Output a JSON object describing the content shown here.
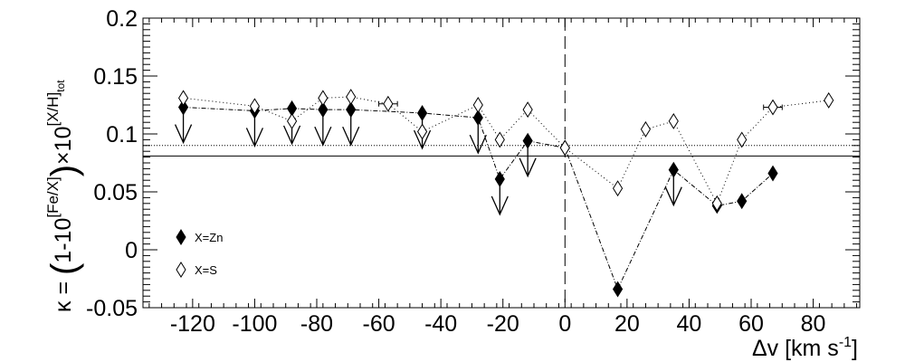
{
  "chart_data": {
    "type": "scatter",
    "xlabel": "Δv [km s",
    "xlabel_sup": "-1",
    "xlabel_end": "]",
    "ylabel": {
      "kappa": "κ = ",
      "lparen": "(",
      "one": "1-10",
      "exp_fe": "[Fe/X]",
      "rparen": ")",
      "times": "×10",
      "exp_xh": "[X/H]",
      "exp_tot": "tot"
    },
    "xlim": [
      -136,
      95
    ],
    "ylim": [
      -0.05,
      0.2
    ],
    "x_ticks": [
      -120,
      -100,
      -80,
      -60,
      -40,
      -20,
      0,
      20,
      40,
      60,
      80
    ],
    "x_tick_labels": [
      "-120",
      "-100",
      "-80",
      "-60",
      "-40",
      "-20",
      "0",
      "20",
      "40",
      "60",
      "80"
    ],
    "y_ticks": [
      -0.05,
      0,
      0.05,
      0.1,
      0.15,
      0.2
    ],
    "y_tick_labels": [
      "-0.05",
      "0",
      "0.05",
      "0.1",
      "0.15",
      "0.2"
    ],
    "reference_lines": {
      "solid_y": 0.081,
      "dotted_y": 0.09,
      "dashed_x": 0
    },
    "series": [
      {
        "name": "X=Zn",
        "marker": "filled-diamond",
        "line": "dash-dot",
        "points": [
          {
            "x": -123,
            "y": 0.123,
            "upper_limit": true
          },
          {
            "x": -100,
            "y": 0.12,
            "upper_limit": true
          },
          {
            "x": -88,
            "y": 0.122,
            "upper_limit": true
          },
          {
            "x": -78,
            "y": 0.121,
            "upper_limit": true
          },
          {
            "x": -69,
            "y": 0.121,
            "upper_limit": true
          },
          {
            "x": -46,
            "y": 0.118,
            "upper_limit": true
          },
          {
            "x": -28,
            "y": 0.114,
            "upper_limit": true
          },
          {
            "x": -21,
            "y": 0.061,
            "upper_limit": true
          },
          {
            "x": -12,
            "y": 0.094,
            "upper_limit": true
          },
          {
            "x": 0,
            "y": 0.088,
            "upper_limit": false
          },
          {
            "x": 17,
            "y": -0.034,
            "upper_limit": false
          },
          {
            "x": 35,
            "y": 0.069,
            "upper_limit": true
          },
          {
            "x": 49,
            "y": 0.038,
            "upper_limit": false
          },
          {
            "x": 57,
            "y": 0.042,
            "upper_limit": false
          },
          {
            "x": 67,
            "y": 0.066,
            "upper_limit": false
          }
        ]
      },
      {
        "name": "X=S",
        "marker": "open-diamond",
        "line": "dotted",
        "points": [
          {
            "x": -123,
            "y": 0.131
          },
          {
            "x": -100,
            "y": 0.124
          },
          {
            "x": -88,
            "y": 0.111
          },
          {
            "x": -78,
            "y": 0.131
          },
          {
            "x": -69,
            "y": 0.132
          },
          {
            "x": -57,
            "y": 0.126,
            "xerr": 3
          },
          {
            "x": -46,
            "y": 0.102
          },
          {
            "x": -28,
            "y": 0.125
          },
          {
            "x": -21,
            "y": 0.095
          },
          {
            "x": -12,
            "y": 0.121
          },
          {
            "x": 0,
            "y": 0.088
          },
          {
            "x": 17,
            "y": 0.053
          },
          {
            "x": 26,
            "y": 0.104
          },
          {
            "x": 35,
            "y": 0.111
          },
          {
            "x": 49,
            "y": 0.04
          },
          {
            "x": 57,
            "y": 0.095
          },
          {
            "x": 67,
            "y": 0.123,
            "xerr": 3
          },
          {
            "x": 85,
            "y": 0.129
          }
        ]
      }
    ],
    "legend": {
      "placement": "bottom-left",
      "entries": [
        "X=Zn",
        "X=S"
      ]
    },
    "grid": false
  }
}
